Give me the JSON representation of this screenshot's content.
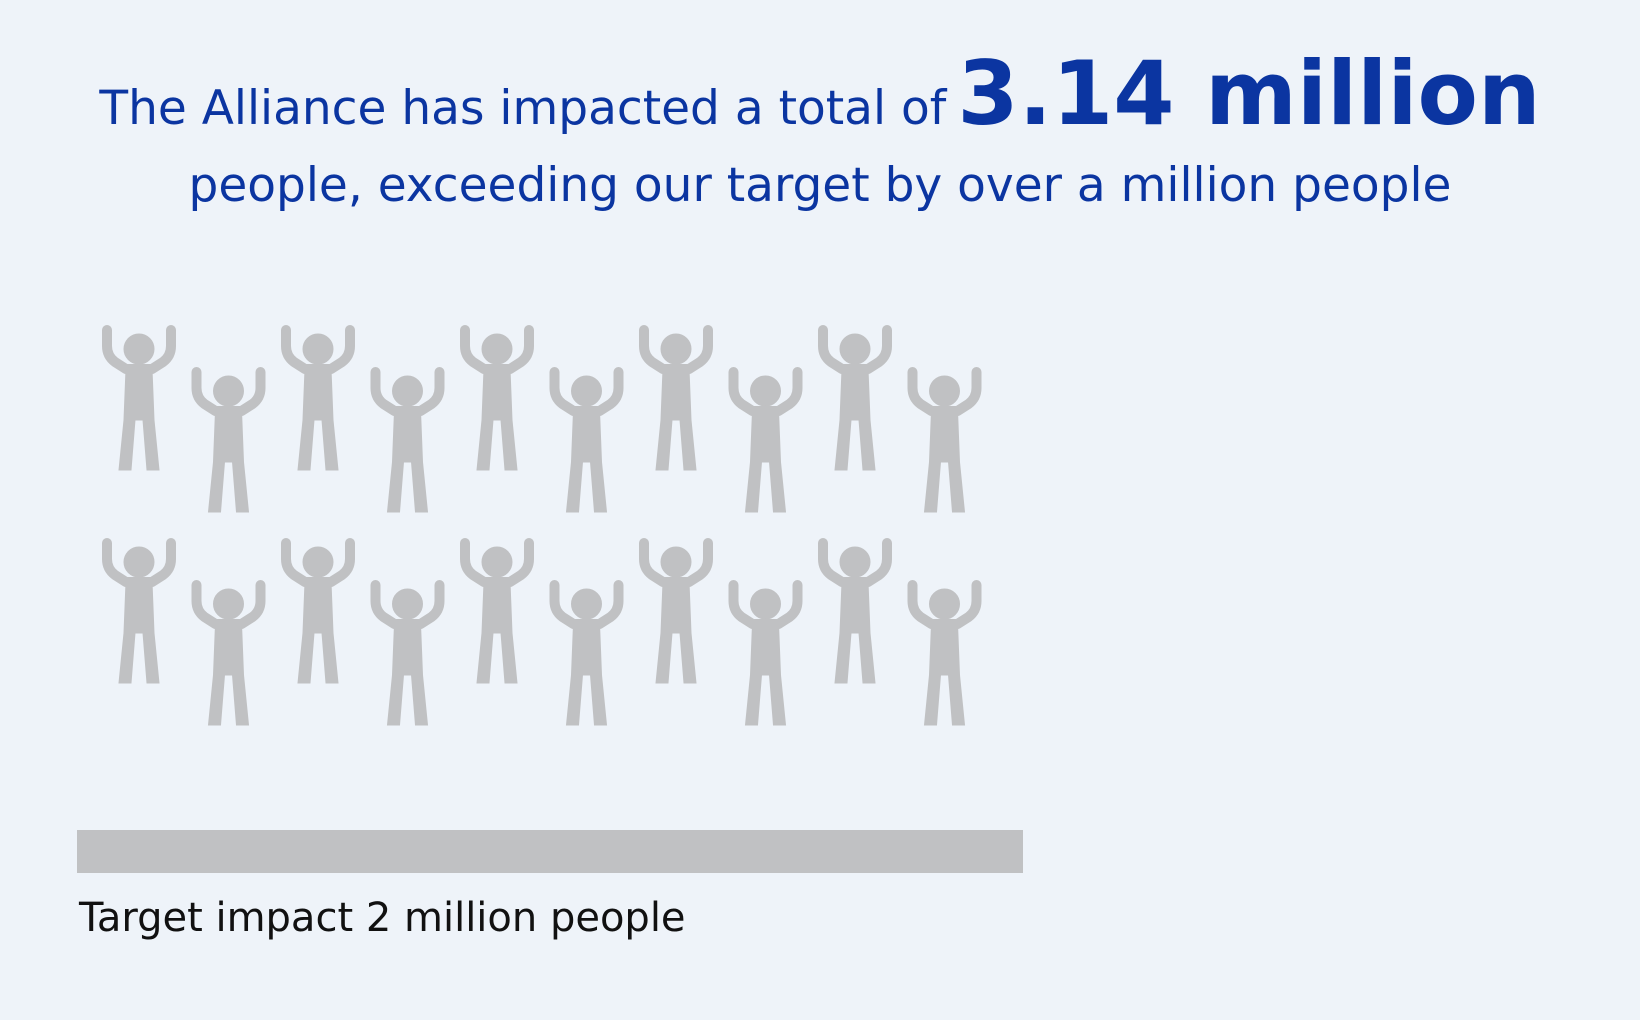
{
  "headline": {
    "line1_prefix": "The Alliance has impacted a total of",
    "highlight": "3.14 million",
    "line2": "people, exceeding our target by over a million people"
  },
  "colors": {
    "background": "#eef3f9",
    "headline": "#0b35a1",
    "figure": "#c0c1c3",
    "target_bar": "#c0c1c3",
    "label": "#111111"
  },
  "chart_data": {
    "type": "bar",
    "categories": [
      "Target impact"
    ],
    "values": [
      2
    ],
    "units": "million people",
    "label": "Target impact 2 million people",
    "icon": "person-arms-raised-icon",
    "icon_count": 20
  }
}
